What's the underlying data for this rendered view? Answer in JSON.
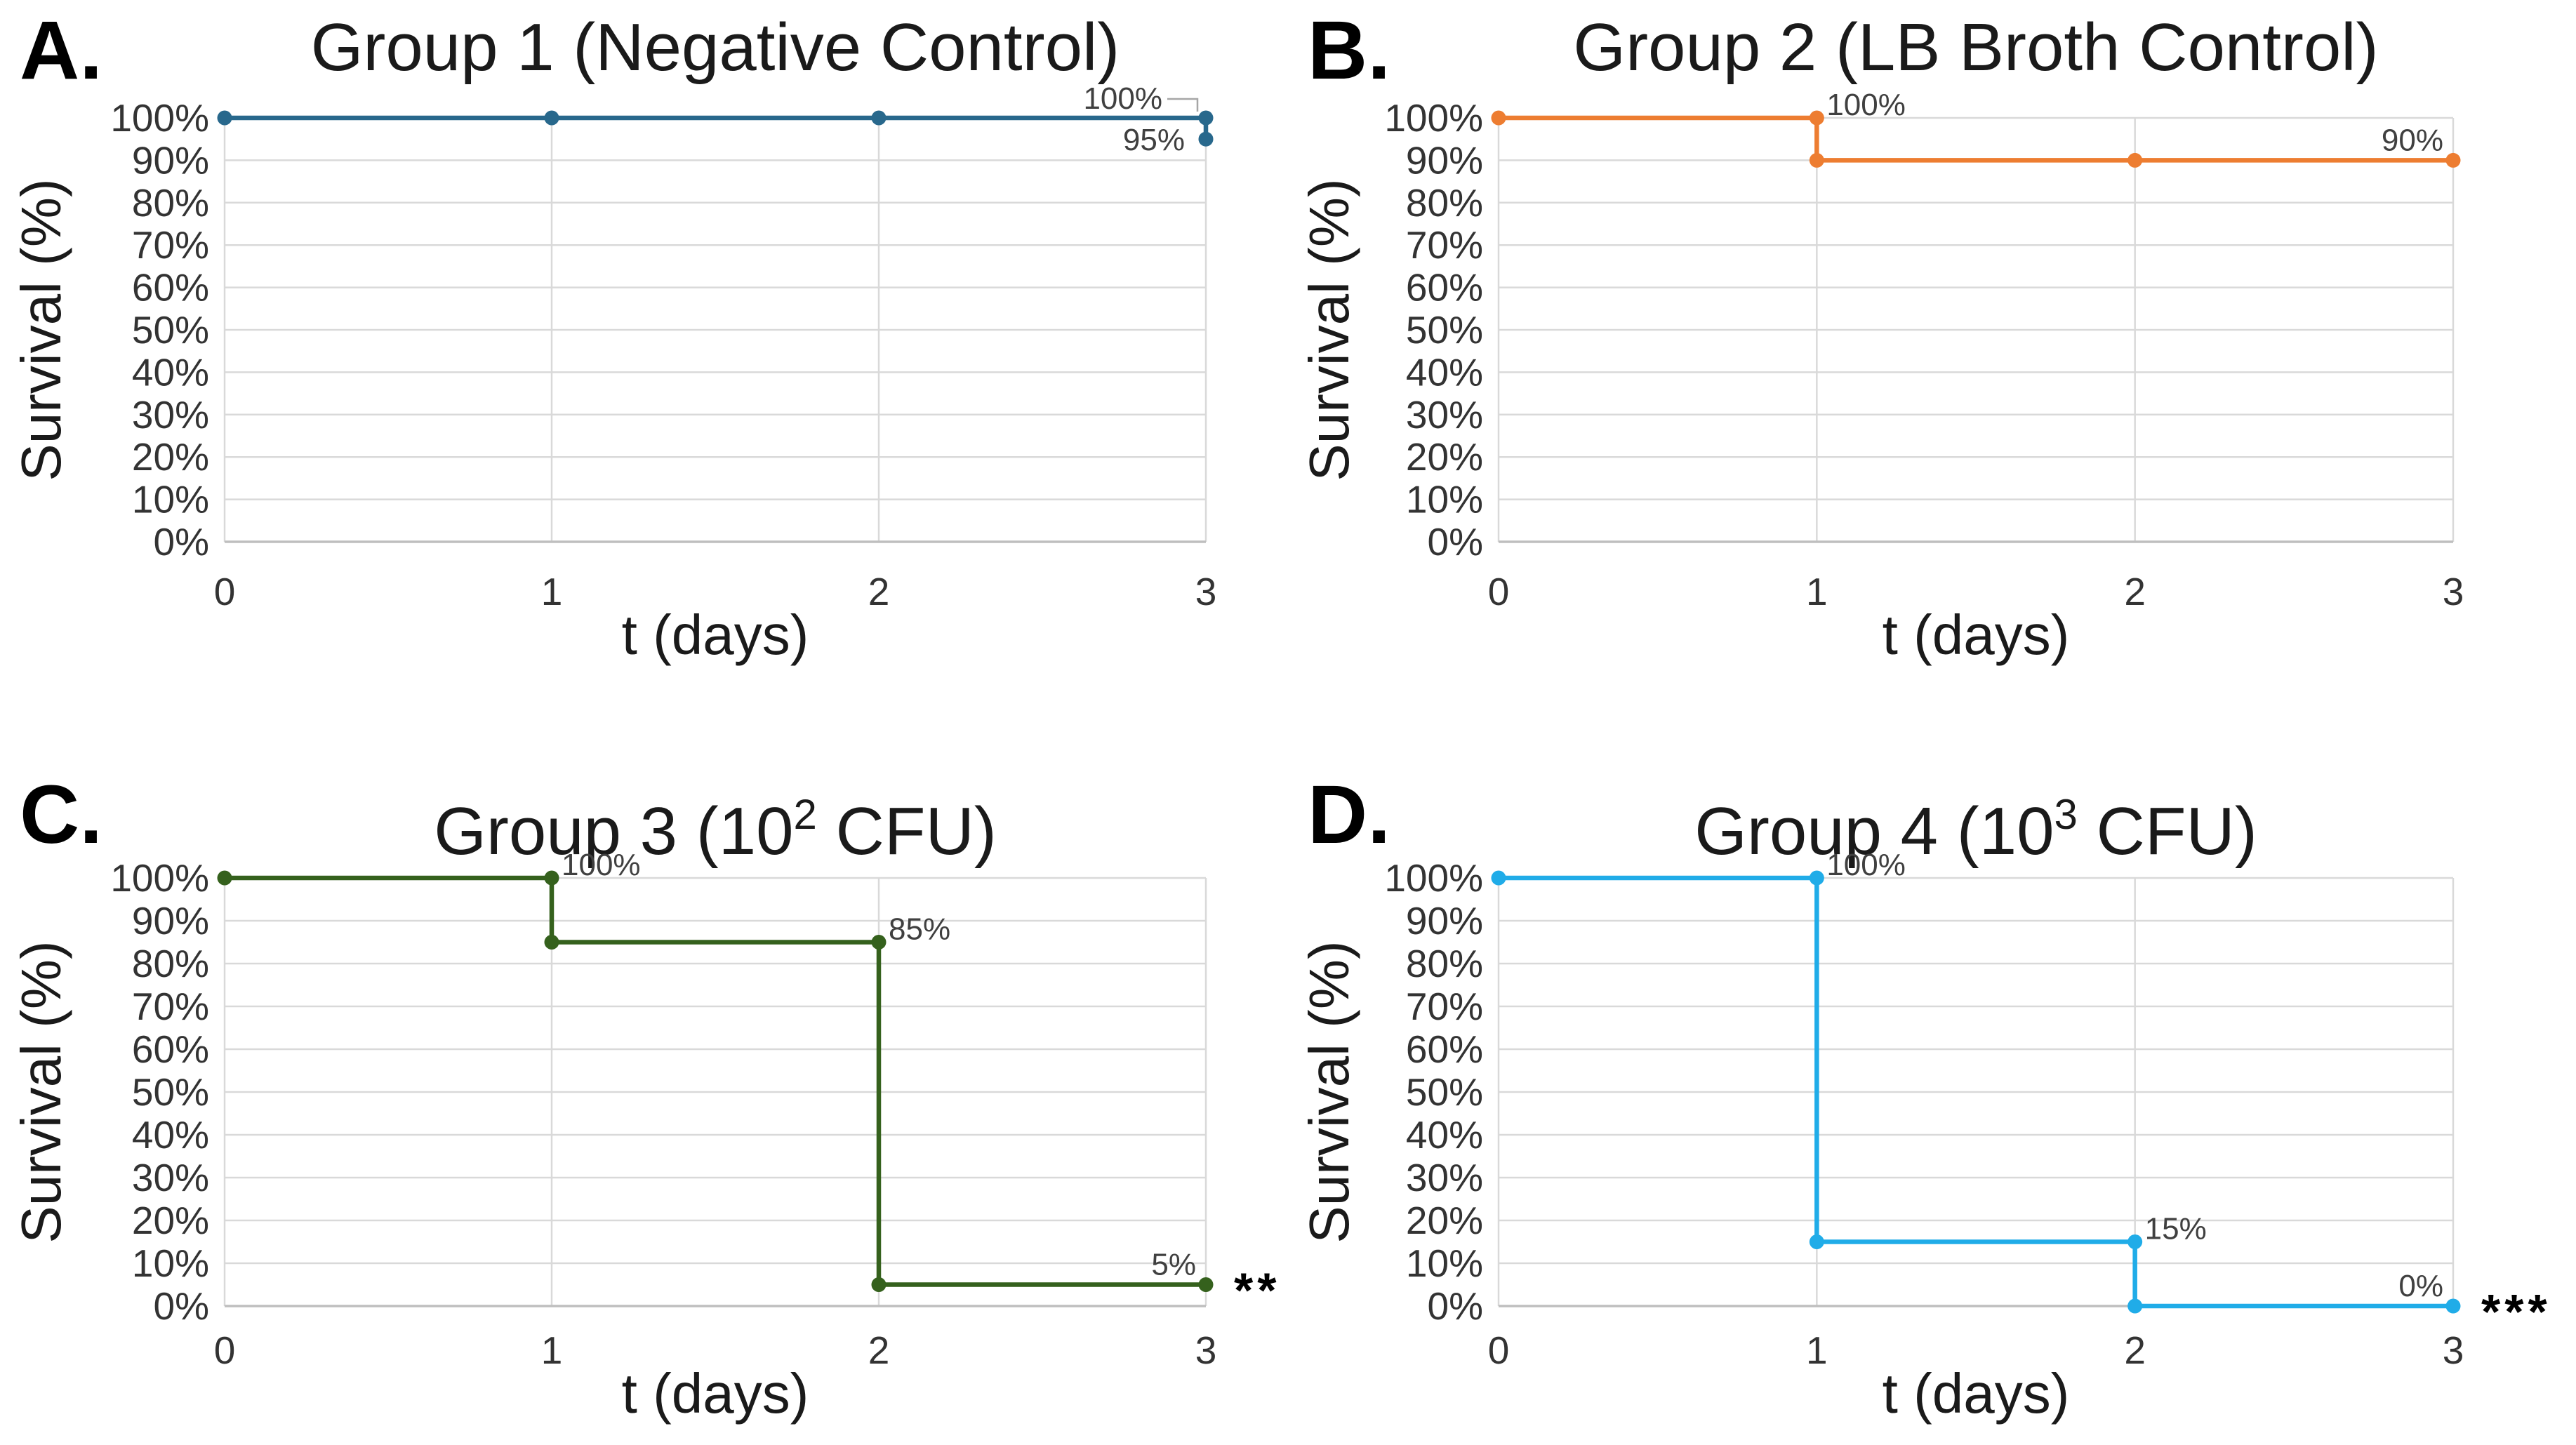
{
  "figure": {
    "background": "#FFFFFF",
    "grid_color": "#D9D9D9",
    "axis_color": "#BFBFBF",
    "leader_color": "#A6A6A6",
    "tick_color": "#333333",
    "title_color": "#1A1A1A",
    "data_label_color": "#404040",
    "letter_color": "#000000"
  },
  "chart_data": [
    {
      "panel_label": "A.",
      "type": "line",
      "title": "Group 1 (Negative Control)",
      "title_parts": {
        "prefix": "Group 1 (Negative Control)",
        "sup": "",
        "suffix": ""
      },
      "xlabel": "t (days)",
      "ylabel": "Survival (%)",
      "color": "#28688C",
      "xlim": [
        0,
        3
      ],
      "ylim": [
        0,
        100
      ],
      "x_ticks": [
        "0",
        "1",
        "2",
        "3"
      ],
      "y_ticks": [
        "0%",
        "10%",
        "20%",
        "30%",
        "40%",
        "50%",
        "60%",
        "70%",
        "80%",
        "90%",
        "100%"
      ],
      "grid": true,
      "x": [
        0,
        1,
        2,
        3,
        3
      ],
      "y": [
        100,
        100,
        100,
        100,
        95
      ],
      "data_labels": [
        {
          "text": "100%",
          "x": 3,
          "y": 100,
          "placement": "callout-left"
        },
        {
          "text": "95%",
          "x": 3,
          "y": 95,
          "placement": "left"
        }
      ],
      "significance": ""
    },
    {
      "panel_label": "B.",
      "type": "line",
      "title": "Group 2 (LB Broth Control)",
      "title_parts": {
        "prefix": "Group 2 (LB Broth Control)",
        "sup": "",
        "suffix": ""
      },
      "xlabel": "t (days)",
      "ylabel": "Survival (%)",
      "color": "#ED7D31",
      "xlim": [
        0,
        3
      ],
      "ylim": [
        0,
        100
      ],
      "x_ticks": [
        "0",
        "1",
        "2",
        "3"
      ],
      "y_ticks": [
        "0%",
        "10%",
        "20%",
        "30%",
        "40%",
        "50%",
        "60%",
        "70%",
        "80%",
        "90%",
        "100%"
      ],
      "grid": true,
      "x": [
        0,
        1,
        1,
        2,
        3
      ],
      "y": [
        100,
        100,
        90,
        90,
        90
      ],
      "data_labels": [
        {
          "text": "100%",
          "x": 1,
          "y": 100,
          "placement": "above-right"
        },
        {
          "text": "90%",
          "x": 3,
          "y": 90,
          "placement": "above-left"
        }
      ],
      "significance": ""
    },
    {
      "panel_label": "C.",
      "type": "line",
      "title": "Group 3 (10² CFU)",
      "title_parts": {
        "prefix": "Group 3 (10",
        "sup": "2",
        "suffix": " CFU)"
      },
      "xlabel": "t (days)",
      "ylabel": "Survival (%)",
      "color": "#35611D",
      "xlim": [
        0,
        3
      ],
      "ylim": [
        0,
        100
      ],
      "x_ticks": [
        "0",
        "1",
        "2",
        "3"
      ],
      "y_ticks": [
        "0%",
        "10%",
        "20%",
        "30%",
        "40%",
        "50%",
        "60%",
        "70%",
        "80%",
        "90%",
        "100%"
      ],
      "grid": true,
      "x": [
        0,
        1,
        1,
        2,
        2,
        3
      ],
      "y": [
        100,
        100,
        85,
        85,
        5,
        5
      ],
      "data_labels": [
        {
          "text": "100%",
          "x": 1,
          "y": 100,
          "placement": "above-right"
        },
        {
          "text": "85%",
          "x": 2,
          "y": 85,
          "placement": "above-right"
        },
        {
          "text": "5%",
          "x": 3,
          "y": 5,
          "placement": "above-left"
        }
      ],
      "significance": "**"
    },
    {
      "panel_label": "D.",
      "type": "line",
      "title": "Group 4 (10³ CFU)",
      "title_parts": {
        "prefix": "Group 4 (10",
        "sup": "3",
        "suffix": " CFU)"
      },
      "xlabel": "t (days)",
      "ylabel": "Survival (%)",
      "color": "#20ACE8",
      "xlim": [
        0,
        3
      ],
      "ylim": [
        0,
        100
      ],
      "x_ticks": [
        "0",
        "1",
        "2",
        "3"
      ],
      "y_ticks": [
        "0%",
        "10%",
        "20%",
        "30%",
        "40%",
        "50%",
        "60%",
        "70%",
        "80%",
        "90%",
        "100%"
      ],
      "grid": true,
      "x": [
        0,
        1,
        1,
        2,
        2,
        3
      ],
      "y": [
        100,
        100,
        15,
        15,
        0,
        0
      ],
      "data_labels": [
        {
          "text": "100%",
          "x": 1,
          "y": 100,
          "placement": "above-right"
        },
        {
          "text": "15%",
          "x": 2,
          "y": 15,
          "placement": "above-right"
        },
        {
          "text": "0%",
          "x": 3,
          "y": 0,
          "placement": "above-left"
        }
      ],
      "significance": "***"
    }
  ]
}
